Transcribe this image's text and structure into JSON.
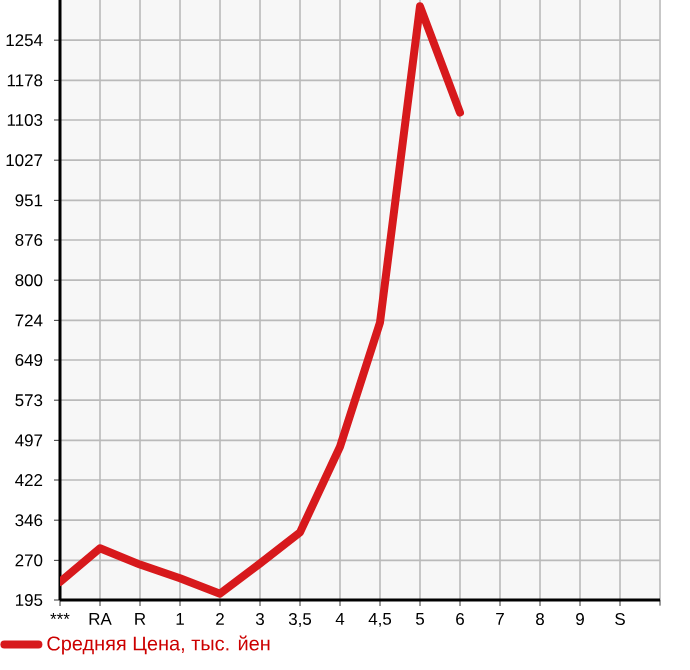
{
  "chart_data": {
    "type": "line",
    "categories": [
      "***",
      "RA",
      "R",
      "1",
      "2",
      "3",
      "3,5",
      "4",
      "4,5",
      "5",
      "6",
      "7",
      "8",
      "9",
      "S"
    ],
    "series": [
      {
        "name": "Средняя Цена, тыс. йен",
        "color": "#d7191c",
        "values": [
          229,
          293,
          262,
          236,
          207,
          264,
          323,
          485,
          720,
          1318,
          1117,
          null,
          null,
          null,
          null
        ]
      }
    ],
    "ylim": [
      195,
      1330
    ],
    "yticks": [
      195,
      270,
      346,
      422,
      497,
      573,
      649,
      724,
      800,
      876,
      951,
      1027,
      1103,
      1178,
      1254
    ],
    "grid": true,
    "legend": "bottom left",
    "marker": "none",
    "line_style": "solid"
  }
}
